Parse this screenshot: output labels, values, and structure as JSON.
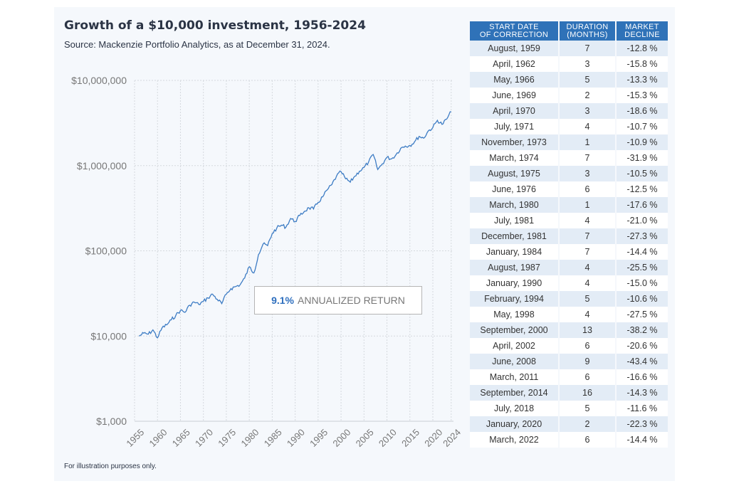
{
  "title": "Growth of a $10,000 investment, 1956-2024",
  "subtitle": "Source: Mackenzie Portfolio Analytics, as at December 31, 2024.",
  "footnote": "For illustration purposes only.",
  "callout": {
    "value": "9.1%",
    "label": "ANNUALIZED RETURN"
  },
  "colors": {
    "line": "#3d7cc4",
    "header": "#2f72b8",
    "callout_value": "#2e6fbe"
  },
  "table": {
    "headers": [
      {
        "line1": "START DATE",
        "line2": "OF CORRECTION"
      },
      {
        "line1": "DURATION",
        "line2": "(MONTHS)"
      },
      {
        "line1": "MARKET",
        "line2": "DECLINE"
      }
    ],
    "rows": [
      [
        "August, 1959",
        "7",
        "-12.8 %"
      ],
      [
        "April, 1962",
        "3",
        "-15.8 %"
      ],
      [
        "May, 1966",
        "5",
        "-13.3 %"
      ],
      [
        "June, 1969",
        "2",
        "-15.3 %"
      ],
      [
        "April, 1970",
        "3",
        "-18.6 %"
      ],
      [
        "July, 1971",
        "4",
        "-10.7 %"
      ],
      [
        "November, 1973",
        "1",
        "-10.9 %"
      ],
      [
        "March, 1974",
        "7",
        "-31.9 %"
      ],
      [
        "August, 1975",
        "3",
        "-10.5 %"
      ],
      [
        "June, 1976",
        "6",
        "-12.5 %"
      ],
      [
        "March, 1980",
        "1",
        "-17.6 %"
      ],
      [
        "July, 1981",
        "4",
        "-21.0 %"
      ],
      [
        "December, 1981",
        "7",
        "-27.3 %"
      ],
      [
        "January, 1984",
        "7",
        "-14.4 %"
      ],
      [
        "August, 1987",
        "4",
        "-25.5 %"
      ],
      [
        "January, 1990",
        "4",
        "-15.0 %"
      ],
      [
        "February, 1994",
        "5",
        "-10.6 %"
      ],
      [
        "May, 1998",
        "4",
        "-27.5 %"
      ],
      [
        "September, 2000",
        "13",
        "-38.2 %"
      ],
      [
        "April, 2002",
        "6",
        "-20.6 %"
      ],
      [
        "June, 2008",
        "9",
        "-43.4 %"
      ],
      [
        "March, 2011",
        "6",
        "-16.6 %"
      ],
      [
        "September, 2014",
        "16",
        "-14.3 %"
      ],
      [
        "July, 2018",
        "5",
        "-11.6 %"
      ],
      [
        "January, 2020",
        "2",
        "-22.3 %"
      ],
      [
        "March, 2022",
        "6",
        "-14.4 %"
      ]
    ]
  },
  "chart_data": {
    "type": "line",
    "title": "Growth of a $10,000 investment, 1956-2024",
    "yscale": "log",
    "ylim": [
      1000,
      10000000
    ],
    "yticks": [
      {
        "value": 1000,
        "label": "$1,000"
      },
      {
        "value": 10000,
        "label": "$10,000"
      },
      {
        "value": 100000,
        "label": "$100,000"
      },
      {
        "value": 1000000,
        "label": "$1,000,000"
      },
      {
        "value": 10000000,
        "label": "$10,000,000"
      }
    ],
    "xlim": [
      1955,
      2024.5
    ],
    "xticks": [
      "1955",
      "1960",
      "1965",
      "1970",
      "1975",
      "1980",
      "1985",
      "1990",
      "1995",
      "2000",
      "2005",
      "2010",
      "2015",
      "2020",
      "2024"
    ],
    "grid": true,
    "series": [
      {
        "x": [
          1956,
          1957,
          1958,
          1959,
          1960,
          1961,
          1962,
          1963,
          1964,
          1965,
          1966,
          1967,
          1968,
          1969,
          1970,
          1971,
          1972,
          1973,
          1974,
          1975,
          1976,
          1977,
          1978,
          1979,
          1980,
          1981,
          1982,
          1983,
          1984,
          1985,
          1986,
          1987,
          1988,
          1989,
          1990,
          1991,
          1992,
          1993,
          1994,
          1995,
          1996,
          1997,
          1998,
          1999,
          2000,
          2001,
          2002,
          2003,
          2004,
          2005,
          2006,
          2007,
          2008,
          2009,
          2010,
          2011,
          2012,
          2013,
          2014,
          2015,
          2016,
          2017,
          2018,
          2019,
          2020,
          2021,
          2022,
          2023,
          2024
        ],
        "y": [
          10000,
          10800,
          10500,
          11800,
          9500,
          12500,
          13500,
          15500,
          17500,
          20000,
          19000,
          23000,
          25000,
          23500,
          25500,
          28000,
          31000,
          27000,
          24000,
          31000,
          36000,
          38000,
          40000,
          48000,
          65000,
          55000,
          90000,
          120000,
          115000,
          160000,
          185000,
          200000,
          190000,
          240000,
          220000,
          260000,
          290000,
          320000,
          310000,
          370000,
          430000,
          520000,
          600000,
          750000,
          850000,
          700000,
          640000,
          750000,
          860000,
          950000,
          1100000,
          1350000,
          900000,
          1050000,
          1250000,
          1200000,
          1350000,
          1600000,
          1700000,
          1720000,
          1900000,
          2200000,
          2100000,
          2550000,
          2800000,
          3400000,
          3050000,
          3500000,
          4300000
        ]
      }
    ]
  }
}
